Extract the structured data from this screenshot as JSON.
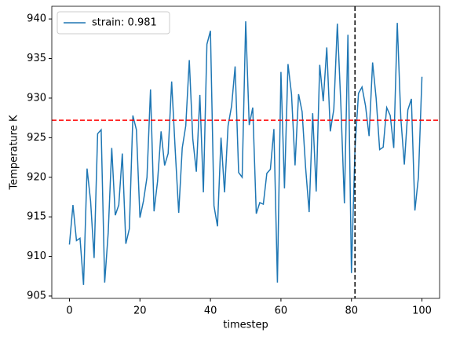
{
  "chart_data": {
    "type": "line",
    "xlabel": "timestep",
    "ylabel": "Temperature K",
    "x": [
      0,
      1,
      2,
      3,
      4,
      5,
      6,
      7,
      8,
      9,
      10,
      11,
      12,
      13,
      14,
      15,
      16,
      17,
      18,
      19,
      20,
      21,
      22,
      23,
      24,
      25,
      26,
      27,
      28,
      29,
      30,
      31,
      32,
      33,
      34,
      35,
      36,
      37,
      38,
      39,
      40,
      41,
      42,
      43,
      44,
      45,
      46,
      47,
      48,
      49,
      50,
      51,
      52,
      53,
      54,
      55,
      56,
      57,
      58,
      59,
      60,
      61,
      62,
      63,
      64,
      65,
      66,
      67,
      68,
      69,
      70,
      71,
      72,
      73,
      74,
      75,
      76,
      77,
      78,
      79,
      80,
      81,
      82,
      83,
      84,
      85,
      86,
      87,
      88,
      89,
      90,
      91,
      92,
      93,
      94,
      95,
      96,
      97,
      98,
      99,
      100
    ],
    "series": [
      {
        "name": "strain: 0.981",
        "color": "#1f77b4",
        "values": [
          911.5,
          916.5,
          912,
          912.3,
          906.4,
          921.1,
          917,
          909.8,
          925.5,
          926,
          906.7,
          913,
          923.7,
          915.2,
          916.5,
          923,
          911.6,
          913.5,
          927.8,
          926,
          914.9,
          917,
          920,
          931.1,
          915.7,
          919.5,
          925.8,
          921.5,
          923,
          932.1,
          923.5,
          915.5,
          923.7,
          926.5,
          934.8,
          924.8,
          920.7,
          930.4,
          918.1,
          936.8,
          938.5,
          916.4,
          913.8,
          925,
          918.1,
          926.5,
          929,
          934,
          920.6,
          920,
          939.7,
          926.6,
          928.8,
          915.4,
          916.8,
          916.6,
          920.5,
          921,
          926.1,
          906.7,
          933.3,
          918.6,
          934.3,
          930.5,
          921.5,
          930.5,
          928.3,
          921.2,
          915.6,
          928.1,
          918.2,
          934.2,
          929.6,
          936.4,
          925.8,
          928.6,
          939.4,
          929.1,
          916.7,
          938,
          907.9,
          923.6,
          930.6,
          931.4,
          929,
          925.2,
          934.5,
          930,
          923.5,
          923.8,
          928.8,
          927.8,
          923.7,
          939.5,
          927.5,
          921.6,
          928.5,
          929.9,
          915.8,
          920,
          932.7
        ]
      }
    ],
    "hline": {
      "y": 927.2,
      "color": "#ff0000"
    },
    "vline": {
      "x": 81,
      "color": "#000000"
    },
    "xlim": [
      -5,
      105
    ],
    "ylim": [
      904.7,
      941.6
    ],
    "xticks": [
      0,
      20,
      40,
      60,
      80,
      100
    ],
    "yticks": [
      905,
      910,
      915,
      920,
      925,
      930,
      935,
      940
    ],
    "legend": "upper left"
  }
}
